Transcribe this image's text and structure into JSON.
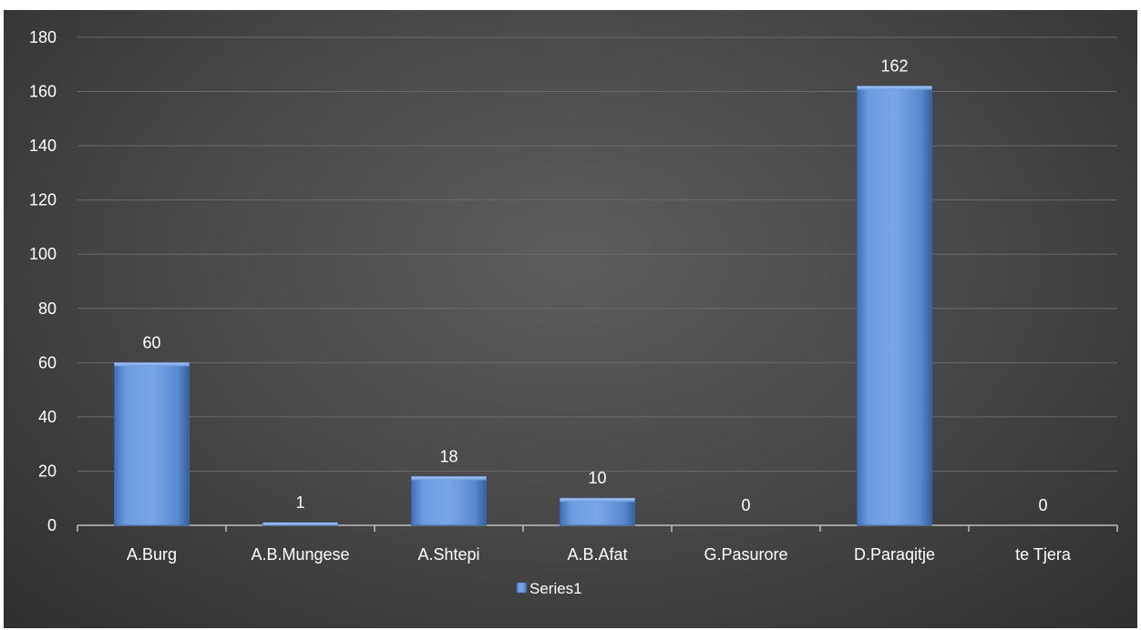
{
  "chart_data": {
    "type": "bar",
    "categories": [
      "A.Burg",
      "A.B.Mungese",
      "A.Shtepi",
      "A.B.Afat",
      "G.Pasurore",
      "D.Paraqitje",
      "te Tjera"
    ],
    "series": [
      {
        "name": "Series1",
        "values": [
          60,
          1,
          18,
          10,
          0,
          162,
          0
        ],
        "color": "#5b8fd6"
      }
    ],
    "ylim": [
      0,
      180
    ],
    "yticks": [
      0,
      20,
      40,
      60,
      80,
      100,
      120,
      140,
      160,
      180
    ],
    "grid": true,
    "legend": "bottom",
    "data_labels": true
  }
}
